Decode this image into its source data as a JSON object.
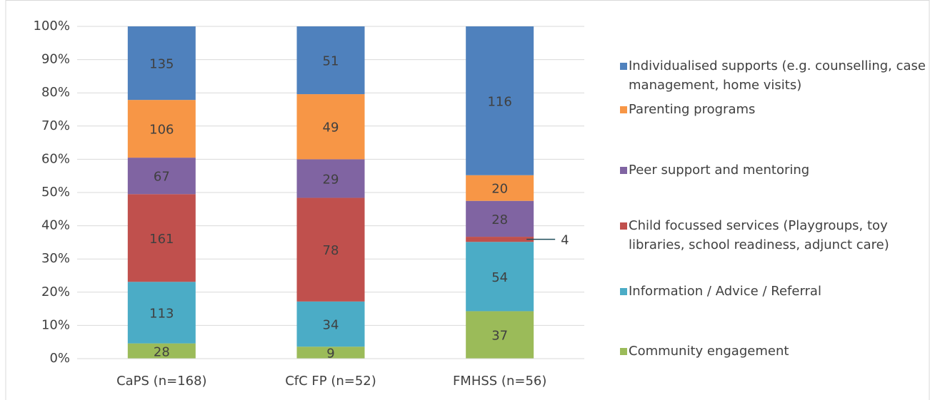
{
  "chart_data": {
    "type": "bar",
    "stacking": "percent",
    "categories": [
      "CaPS (n=168)",
      "CfC FP (n=52)",
      "FMHSS (n=56)"
    ],
    "series": [
      {
        "name": "Community engagement",
        "color": "#9bbb59",
        "values": [
          28,
          9,
          37
        ]
      },
      {
        "name": "Information / Advice / Referral",
        "color": "#4bacc6",
        "values": [
          113,
          34,
          54
        ]
      },
      {
        "name": "Child focussed services (Playgroups, toy libraries, school readiness, adjunct care)",
        "color": "#c0504d",
        "values": [
          161,
          78,
          4
        ]
      },
      {
        "name": "Peer support and mentoring",
        "color": "#8064a2",
        "values": [
          67,
          29,
          28
        ]
      },
      {
        "name": "Parenting programs",
        "color": "#f79646",
        "values": [
          106,
          49,
          20
        ]
      },
      {
        "name": "Individualised supports (e.g. counselling, case management, home visits)",
        "color": "#4f81bd",
        "values": [
          135,
          51,
          116
        ]
      }
    ],
    "ylim": [
      0,
      100
    ],
    "yticks": [
      {
        "value": 0,
        "label": "0%"
      },
      {
        "value": 10,
        "label": "10%"
      },
      {
        "value": 20,
        "label": "20%"
      },
      {
        "value": 30,
        "label": "30%"
      },
      {
        "value": 40,
        "label": "40%"
      },
      {
        "value": 50,
        "label": "50%"
      },
      {
        "value": 60,
        "label": "60%"
      },
      {
        "value": 70,
        "label": "70%"
      },
      {
        "value": 80,
        "label": "80%"
      },
      {
        "value": 90,
        "label": "90%"
      },
      {
        "value": 100,
        "label": "100%"
      }
    ],
    "grid": true,
    "legend": "right"
  }
}
